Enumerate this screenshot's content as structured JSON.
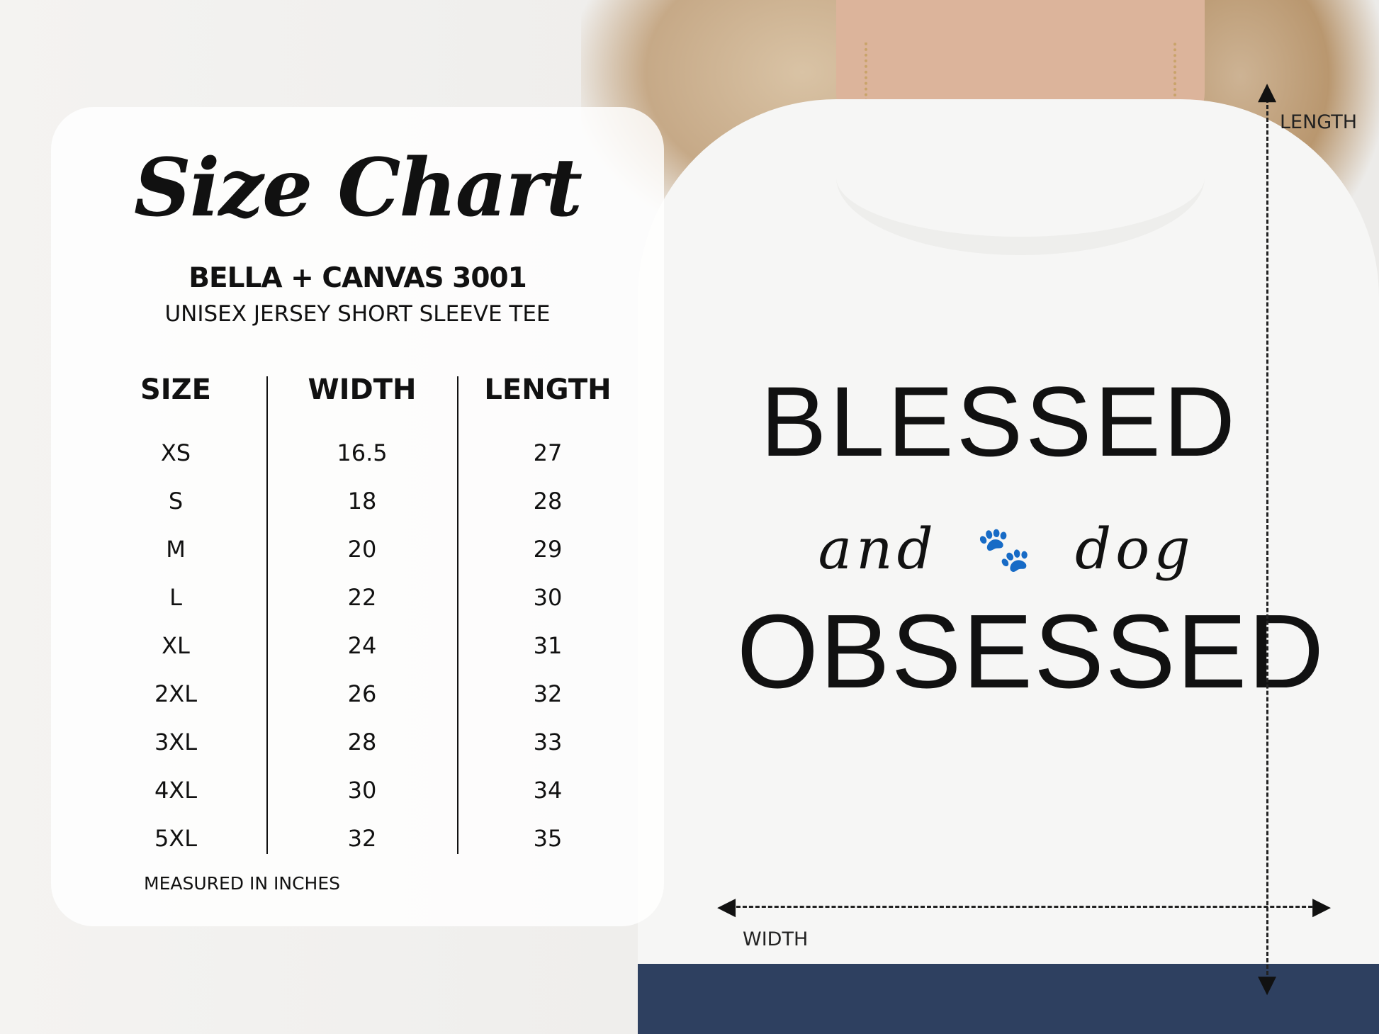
{
  "size_chart": {
    "title": "Size Chart",
    "brand": "BELLA + CANVAS 3001",
    "product": "UNISEX JERSEY SHORT SLEEVE TEE",
    "columns": [
      "SIZE",
      "WIDTH",
      "LENGTH"
    ],
    "sizes": [
      "XS",
      "S",
      "M",
      "L",
      "XL",
      "2XL",
      "3XL",
      "4XL",
      "5XL"
    ],
    "widths": [
      "16.5",
      "18",
      "20",
      "22",
      "24",
      "26",
      "28",
      "30",
      "32"
    ],
    "lengths": [
      "27",
      "28",
      "29",
      "30",
      "31",
      "32",
      "33",
      "34",
      "35"
    ],
    "footer": "MEASURED IN INCHES"
  },
  "shirt": {
    "line1": "BLESSED",
    "line2_left": "and",
    "line2_right": "dog",
    "line3": "OBSESSED",
    "icon": "paw-icon"
  },
  "dimensions": {
    "length_label": "LENGTH",
    "width_label": "WIDTH"
  }
}
